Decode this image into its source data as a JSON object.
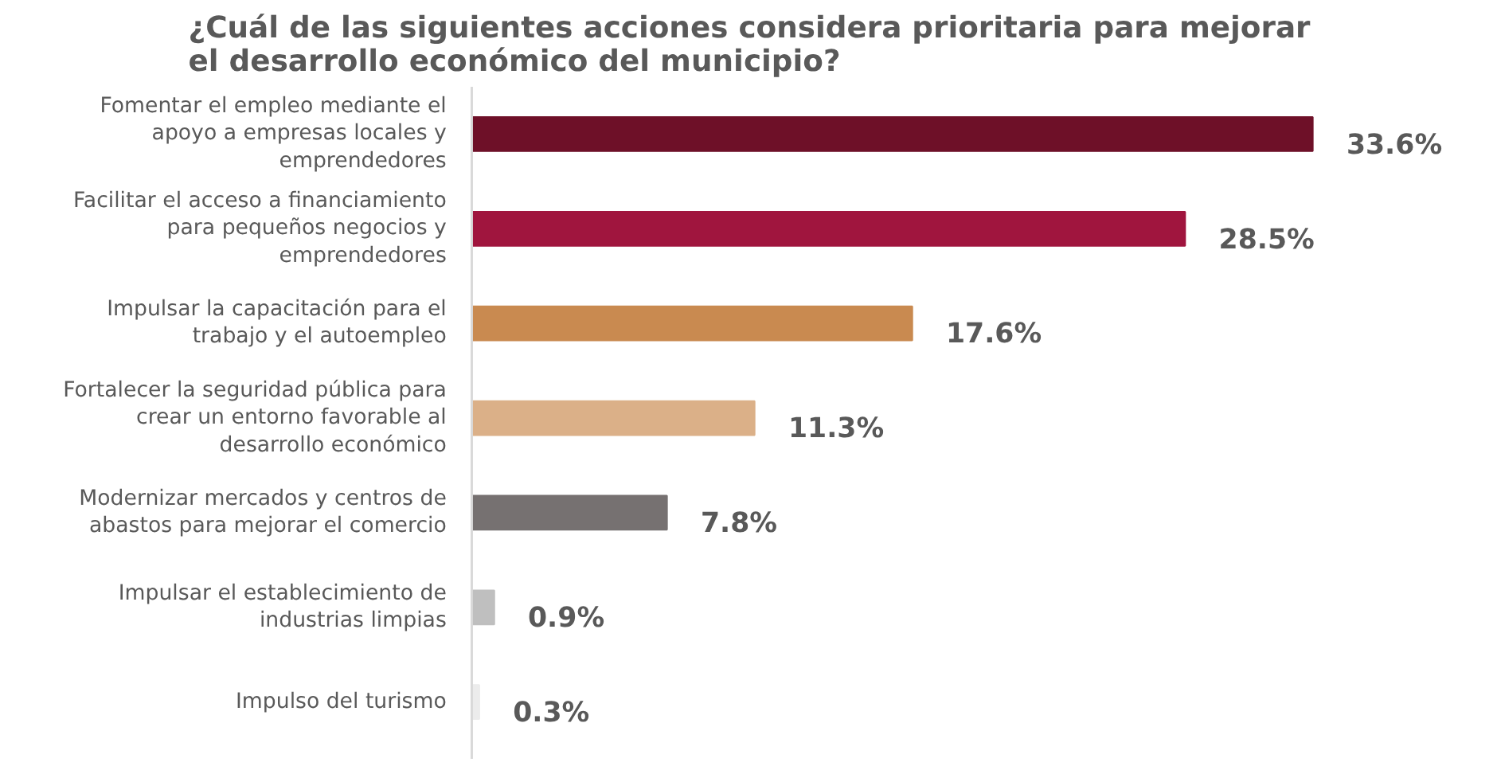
{
  "chart_data": {
    "type": "bar",
    "orientation": "horizontal",
    "title": "¿Cuál de las siguientes acciones considera prioritaria para mejorar\nel desarrollo económico del municipio?",
    "categories": [
      "Fomentar el empleo mediante el\napoyo a empresas locales y\nemprendedores",
      "Facilitar el acceso a financiamiento\npara pequeños negocios y\nemprendedores",
      "Impulsar la capacitación para el\ntrabajo y el autoempleo",
      "Fortalecer la seguridad pública para\ncrear un entorno favorable al\ndesarrollo económico",
      "Modernizar mercados y centros de\nabastos para mejorar el comercio",
      "Impulsar el establecimiento de\nindustrias limpias",
      "Impulso del turismo"
    ],
    "values": [
      33.6,
      28.5,
      17.6,
      11.3,
      7.8,
      0.9,
      0.3
    ],
    "colors": [
      "#6e1028",
      "#a0153e",
      "#c98a50",
      "#dbb088",
      "#767171",
      "#bfbfbf",
      "#ececec"
    ],
    "value_labels": [
      "33.6%",
      "28.5%",
      "17.6%",
      "11.3%",
      "7.8%",
      "0.9%",
      "0.3%"
    ],
    "grid": false
  }
}
